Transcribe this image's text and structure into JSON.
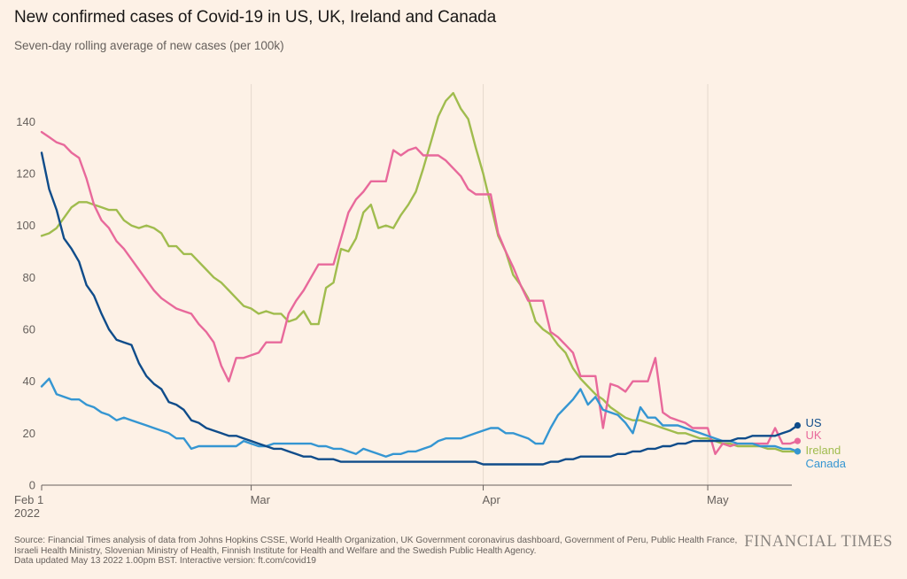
{
  "header": {
    "title": "New confirmed cases of Covid-19 in US, UK, Ireland and Canada",
    "subtitle": "Seven-day rolling average of new cases (per 100k)"
  },
  "footer": {
    "source_lines": [
      "Source: Financial Times analysis of data from Johns Hopkins CSSE, World Health Organization, UK Government coronavirus dashboard, Government of Peru, Public Health France,",
      "Israeli Health Ministry, Slovenian Ministry of Health, Finnish Institute for Health and Welfare and the Swedish Public Health Agency.",
      "Data updated May 13 2022 1.00pm BST. Interactive version: ft.com/covid19"
    ],
    "brand": "FINANCIAL TIMES"
  },
  "chart_data": {
    "type": "line",
    "title": "New confirmed cases of Covid-19 in US, UK, Ireland and Canada",
    "subtitle": "Seven-day rolling average of new cases (per 100k)",
    "xlabel": "",
    "ylabel": "",
    "x_start_date": "2022-02-01",
    "x_end_date": "2022-05-12",
    "x_ticks": [
      {
        "date": "2022-02-01",
        "label": "Feb 1",
        "sublabel": "2022"
      },
      {
        "date": "2022-03-01",
        "label": "Mar",
        "sublabel": ""
      },
      {
        "date": "2022-04-01",
        "label": "Apr",
        "sublabel": ""
      },
      {
        "date": "2022-05-01",
        "label": "May",
        "sublabel": ""
      }
    ],
    "ylim": [
      0,
      150
    ],
    "y_ticks": [
      0,
      20,
      40,
      60,
      80,
      100,
      120,
      140
    ],
    "grid": "vertical-at-month-starts",
    "legend": "end-of-line labels",
    "series": [
      {
        "name": "Ireland",
        "color": "#a0bc4e",
        "values": [
          96,
          97,
          99,
          103,
          107,
          109,
          109,
          108,
          107,
          106,
          106,
          102,
          100,
          99,
          100,
          99,
          97,
          92,
          92,
          89,
          89,
          86,
          83,
          80,
          78,
          75,
          72,
          69,
          68,
          66,
          67,
          66,
          66,
          63,
          64,
          67,
          62,
          62,
          76,
          78,
          91,
          90,
          95,
          105,
          108,
          99,
          100,
          99,
          104,
          108,
          113,
          122,
          132,
          142,
          148,
          151,
          145,
          141,
          130,
          120,
          108,
          96,
          90,
          81,
          77,
          72,
          63,
          60,
          58,
          54,
          51,
          45,
          41,
          38,
          35,
          33,
          30,
          28,
          26,
          25,
          25,
          24,
          23,
          22,
          21,
          20,
          20,
          19,
          18,
          18,
          17,
          16,
          16,
          15,
          15,
          15,
          15,
          14,
          14,
          13,
          13,
          13
        ]
      },
      {
        "name": "UK",
        "color": "#e8699b",
        "values": [
          136,
          134,
          132,
          131,
          128,
          126,
          118,
          108,
          102,
          99,
          94,
          91,
          87,
          83,
          79,
          75,
          72,
          70,
          68,
          67,
          66,
          62,
          59,
          55,
          46,
          40,
          49,
          49,
          50,
          51,
          55,
          55,
          55,
          66,
          71,
          75,
          80,
          85,
          85,
          85,
          95,
          105,
          110,
          113,
          117,
          117,
          117,
          129,
          127,
          129,
          130,
          127,
          127,
          127,
          125,
          122,
          119,
          114,
          112,
          112,
          112,
          97,
          90,
          84,
          77,
          71,
          71,
          71,
          59,
          57,
          54,
          51,
          42,
          42,
          42,
          22,
          39,
          38,
          36,
          40,
          40,
          40,
          49,
          28,
          26,
          25,
          24,
          22,
          22,
          22,
          12,
          16,
          15,
          16,
          16,
          16,
          16,
          16,
          22,
          16,
          16,
          17
        ]
      },
      {
        "name": "Canada",
        "color": "#3596d2",
        "values": [
          38,
          41,
          35,
          34,
          33,
          33,
          31,
          30,
          28,
          27,
          25,
          26,
          25,
          24,
          23,
          22,
          21,
          20,
          18,
          18,
          14,
          15,
          15,
          15,
          15,
          15,
          15,
          17,
          16,
          15,
          15,
          16,
          16,
          16,
          16,
          16,
          16,
          15,
          15,
          14,
          14,
          13,
          12,
          14,
          13,
          12,
          11,
          12,
          12,
          13,
          13,
          14,
          15,
          17,
          18,
          18,
          18,
          19,
          20,
          21,
          22,
          22,
          20,
          20,
          19,
          18,
          16,
          16,
          22,
          27,
          30,
          33,
          37,
          31,
          34,
          29,
          28,
          27,
          24,
          20,
          30,
          26,
          26,
          23,
          23,
          23,
          22,
          21,
          20,
          19,
          18,
          17,
          17,
          16,
          16,
          16,
          15,
          15,
          15,
          14,
          14,
          13
        ]
      },
      {
        "name": "US",
        "color": "#0f4c8a",
        "values": [
          128,
          114,
          106,
          95,
          91,
          86,
          77,
          73,
          66,
          60,
          56,
          55,
          54,
          47,
          42,
          39,
          37,
          32,
          31,
          29,
          25,
          24,
          22,
          21,
          20,
          19,
          19,
          18,
          17,
          16,
          15,
          14,
          14,
          13,
          12,
          11,
          11,
          10,
          10,
          10,
          9,
          9,
          9,
          9,
          9,
          9,
          9,
          9,
          9,
          9,
          9,
          9,
          9,
          9,
          9,
          9,
          9,
          9,
          9,
          8,
          8,
          8,
          8,
          8,
          8,
          8,
          8,
          8,
          9,
          9,
          10,
          10,
          11,
          11,
          11,
          11,
          11,
          12,
          12,
          13,
          13,
          14,
          14,
          15,
          15,
          16,
          16,
          17,
          17,
          17,
          17,
          17,
          17,
          18,
          18,
          19,
          19,
          19,
          19,
          20,
          21,
          23
        ]
      }
    ]
  }
}
